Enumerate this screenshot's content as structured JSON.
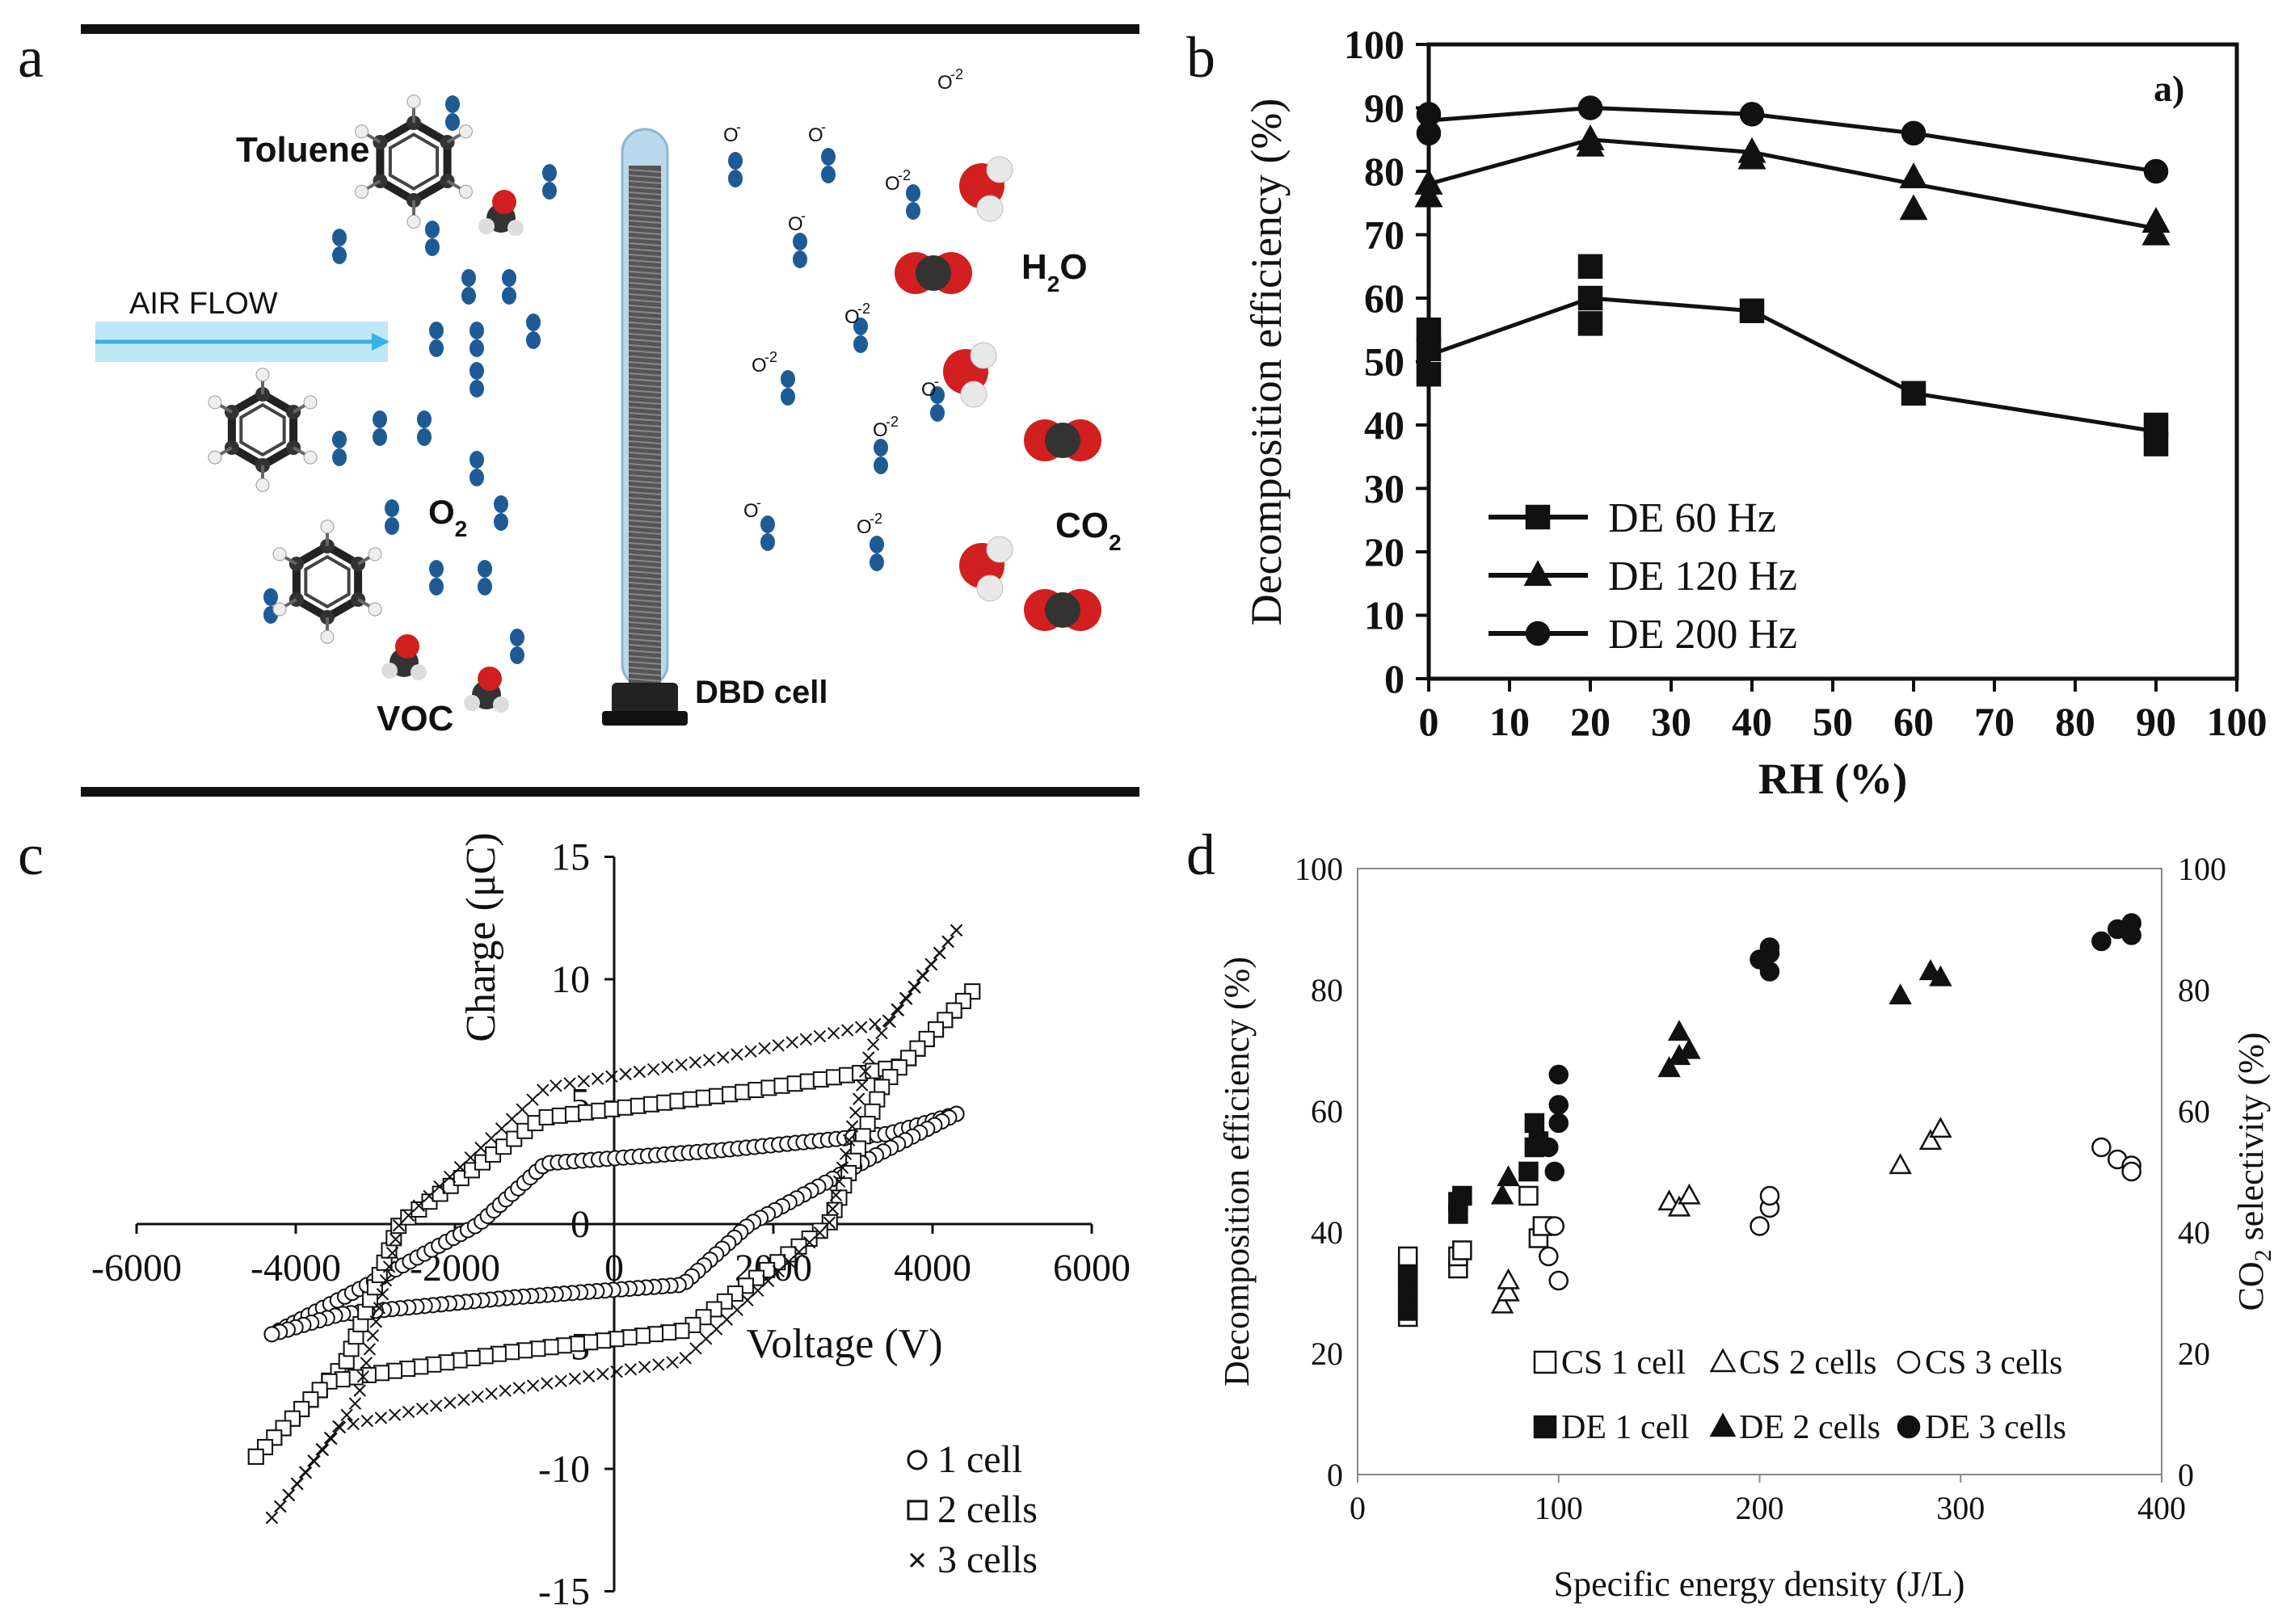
{
  "panel_labels": {
    "a": "a",
    "b": "b",
    "c": "c",
    "d": "d"
  },
  "diagram": {
    "labels": {
      "toluene": "Toluene",
      "air_flow": "AIR FLOW",
      "o2": "O",
      "o2_sub": "2",
      "voc": "VOC",
      "dbd": "DBD cell",
      "h2o_h": "H",
      "h2o_sub": "2",
      "h2o_o": "O",
      "co2": "CO",
      "co2_sub": "2",
      "o_minus": "O",
      "minus": "-",
      "minus2": "-2"
    },
    "colors": {
      "o2_blue": "#1e5b95",
      "voc_purple": "#8a2db5",
      "airflow": "#3ab0e8",
      "oxygen_red": "#d21f1f",
      "carbon_dark": "#333333"
    }
  },
  "chart_data": [
    {
      "id": "b",
      "type": "line",
      "corner_label": "a)",
      "xlabel": "RH (%)",
      "ylabel": "Decomposition efficiency (%)",
      "xlim": [
        0,
        100
      ],
      "ylim": [
        0,
        100
      ],
      "xticks": [
        "0",
        "10",
        "20",
        "30",
        "40",
        "50",
        "60",
        "70",
        "80",
        "90",
        "100"
      ],
      "yticks": [
        "0",
        "10",
        "20",
        "30",
        "40",
        "50",
        "60",
        "70",
        "80",
        "90",
        "100"
      ],
      "x": [
        0,
        20,
        40,
        60,
        90
      ],
      "series": [
        {
          "name": "DE 60 Hz",
          "marker": "square",
          "values": [
            51,
            60,
            58,
            45,
            39
          ],
          "scatter": [
            [
              0,
              48
            ],
            [
              0,
              52
            ],
            [
              0,
              55
            ],
            [
              20,
              56
            ],
            [
              20,
              60
            ],
            [
              20,
              65
            ],
            [
              40,
              58
            ],
            [
              60,
              45
            ],
            [
              90,
              37
            ],
            [
              90,
              40
            ]
          ]
        },
        {
          "name": "DE 120 Hz",
          "marker": "triangle",
          "values": [
            78,
            85,
            83,
            78,
            71
          ],
          "scatter": [
            [
              0,
              76
            ],
            [
              0,
              78
            ],
            [
              20,
              84
            ],
            [
              20,
              85
            ],
            [
              40,
              82
            ],
            [
              40,
              83
            ],
            [
              60,
              74
            ],
            [
              60,
              79
            ],
            [
              90,
              70
            ],
            [
              90,
              72
            ]
          ]
        },
        {
          "name": "DE 200 Hz",
          "marker": "circle",
          "values": [
            88,
            90,
            89,
            86,
            80
          ],
          "scatter": [
            [
              0,
              86
            ],
            [
              0,
              89
            ],
            [
              20,
              90
            ],
            [
              40,
              89
            ],
            [
              60,
              86
            ],
            [
              90,
              80
            ]
          ]
        }
      ]
    },
    {
      "id": "c",
      "type": "scatter",
      "xlabel": "Voltage (V)",
      "ylabel": "Charge (μC)",
      "xlim": [
        -6000,
        6000
      ],
      "ylim": [
        -15,
        15
      ],
      "xticks": [
        "-6000",
        "-4000",
        "-2000",
        "0",
        "2000",
        "4000",
        "6000"
      ],
      "yticks": [
        "-15",
        "-10",
        "-5",
        "0",
        "5",
        "10",
        "15"
      ],
      "series": [
        {
          "name": "1 cell",
          "marker": "circle",
          "loop": {
            "a": 4300,
            "b": 4.5,
            "c": 4.0,
            "vc": 1700
          }
        },
        {
          "name": "2 cells",
          "marker": "square",
          "loop": {
            "a": 4500,
            "b": 9.5,
            "c": 7.0,
            "vc": 2700
          }
        },
        {
          "name": "3 cells",
          "marker": "x",
          "loop": {
            "a": 4300,
            "b": 12.0,
            "c": 9.0,
            "vc": 2700
          }
        }
      ],
      "legend": [
        "1 cell",
        "2 cells",
        "3 cells"
      ]
    },
    {
      "id": "d",
      "type": "scatter",
      "xlabel": "Specific energy density (J/L)",
      "ylabel": "Decomposition efficiency (%)",
      "y2label": "CO",
      "y2label_sub": "2",
      "y2label_rest": " selectivity (%)",
      "xlim": [
        0,
        400
      ],
      "ylim": [
        0,
        100
      ],
      "xticks": [
        "0",
        "100",
        "200",
        "300",
        "400"
      ],
      "yticks": [
        "0",
        "20",
        "40",
        "60",
        "80",
        "100"
      ],
      "y2ticks": [
        "0",
        "20",
        "40",
        "60",
        "80",
        "100"
      ],
      "series": [
        {
          "name": "CS 1 cell",
          "marker": "square",
          "filled": false,
          "points": [
            [
              25,
              26
            ],
            [
              25,
              28
            ],
            [
              25,
              31
            ],
            [
              25,
              34
            ],
            [
              25,
              36
            ],
            [
              50,
              34
            ],
            [
              50,
              36
            ],
            [
              52,
              37
            ],
            [
              90,
              39
            ],
            [
              92,
              41
            ],
            [
              85,
              46
            ]
          ]
        },
        {
          "name": "CS 2 cells",
          "marker": "triangle",
          "filled": false,
          "points": [
            [
              72,
              28
            ],
            [
              75,
              30
            ],
            [
              75,
              32
            ],
            [
              155,
              45
            ],
            [
              160,
              44
            ],
            [
              165,
              46
            ],
            [
              270,
              51
            ],
            [
              285,
              55
            ],
            [
              290,
              57
            ]
          ]
        },
        {
          "name": "CS 3 cells",
          "marker": "circle",
          "filled": false,
          "points": [
            [
              95,
              36
            ],
            [
              98,
              41
            ],
            [
              100,
              32
            ],
            [
              200,
              41
            ],
            [
              205,
              44
            ],
            [
              205,
              46
            ],
            [
              370,
              54
            ],
            [
              378,
              52
            ],
            [
              385,
              51
            ],
            [
              385,
              50
            ]
          ]
        },
        {
          "name": "DE 1 cell",
          "marker": "square",
          "filled": true,
          "points": [
            [
              25,
              27
            ],
            [
              25,
              30
            ],
            [
              25,
              33
            ],
            [
              50,
              43
            ],
            [
              50,
              45
            ],
            [
              52,
              46
            ],
            [
              85,
              50
            ],
            [
              88,
              54
            ],
            [
              88,
              58
            ],
            [
              90,
              55
            ]
          ]
        },
        {
          "name": "DE 2 cells",
          "marker": "triangle",
          "filled": true,
          "points": [
            [
              72,
              46
            ],
            [
              75,
              49
            ],
            [
              155,
              67
            ],
            [
              160,
              69
            ],
            [
              160,
              73
            ],
            [
              165,
              70
            ],
            [
              270,
              79
            ],
            [
              285,
              83
            ],
            [
              290,
              82
            ]
          ]
        },
        {
          "name": "DE 3 cells",
          "marker": "circle",
          "filled": true,
          "points": [
            [
              95,
              54
            ],
            [
              98,
              50
            ],
            [
              100,
              58
            ],
            [
              100,
              61
            ],
            [
              100,
              66
            ],
            [
              200,
              85
            ],
            [
              205,
              83
            ],
            [
              205,
              86
            ],
            [
              205,
              87
            ],
            [
              370,
              88
            ],
            [
              378,
              90
            ],
            [
              385,
              91
            ],
            [
              385,
              89
            ]
          ]
        }
      ]
    }
  ]
}
